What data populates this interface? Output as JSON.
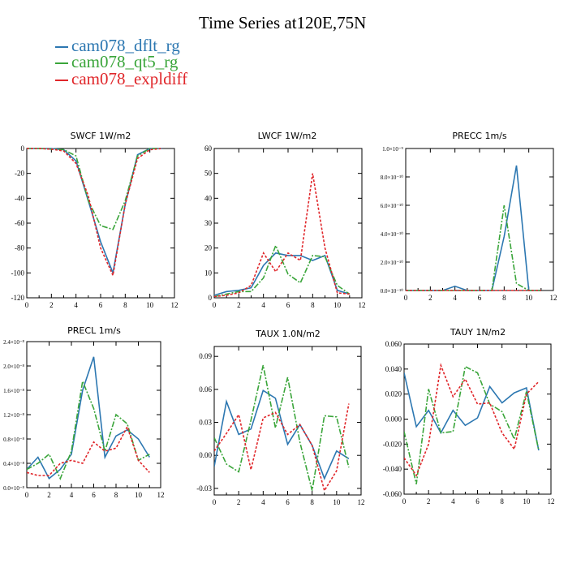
{
  "figure_title": "Time Series at120E,75N",
  "legend": [
    {
      "name": "cam078_dflt_rg",
      "color": "#2c77b1",
      "dash": "solid"
    },
    {
      "name": "cam078_qt5_rg",
      "color": "#3aa53a",
      "dash": "dashdot"
    },
    {
      "name": "cam078_expldiff",
      "color": "#e0262a",
      "dash": "dotted"
    }
  ],
  "chart_data": [
    {
      "type": "line",
      "title": "SWCF   1W/m2",
      "x": [
        0,
        1,
        2,
        3,
        4,
        5,
        6,
        7,
        8,
        9,
        10,
        11
      ],
      "xlim": [
        0,
        12
      ],
      "xticks": [
        "0",
        "2",
        "4",
        "6",
        "8",
        "10",
        "12"
      ],
      "ylim": [
        -120,
        0
      ],
      "yticks": [
        "0",
        "-20",
        "-40",
        "-60",
        "-80",
        "-100",
        "-120"
      ],
      "series": [
        {
          "name": "cam078_dflt_rg",
          "values": [
            0,
            0,
            0,
            -1,
            -10,
            -42,
            -75,
            -100,
            -45,
            -5,
            0,
            0
          ]
        },
        {
          "name": "cam078_qt5_rg",
          "values": [
            0,
            0,
            -0.5,
            -1,
            -6,
            -42,
            -62,
            -65,
            -42,
            -6,
            0,
            0
          ]
        },
        {
          "name": "cam078_expldiff",
          "values": [
            0,
            0,
            -0.5,
            -2,
            -12,
            -38,
            -80,
            -102,
            -45,
            -8,
            -1,
            0
          ]
        }
      ]
    },
    {
      "type": "line",
      "title": "LWCF   1W/m2",
      "x": [
        0,
        1,
        2,
        3,
        4,
        5,
        6,
        7,
        8,
        9,
        10,
        11
      ],
      "xlim": [
        0,
        12
      ],
      "xticks": [
        "0",
        "2",
        "4",
        "6",
        "8",
        "10",
        "12"
      ],
      "ylim": [
        0,
        60
      ],
      "yticks": [
        "0",
        "10",
        "20",
        "30",
        "40",
        "50",
        "60"
      ],
      "series": [
        {
          "name": "cam078_dflt_rg",
          "values": [
            1,
            2.5,
            3,
            4,
            13,
            18,
            17,
            17,
            15,
            17,
            3,
            1.5
          ]
        },
        {
          "name": "cam078_qt5_rg",
          "values": [
            0.5,
            1.5,
            2.5,
            2.5,
            8,
            21,
            9.5,
            6,
            17,
            16.5,
            5,
            1.5
          ]
        },
        {
          "name": "cam078_expldiff",
          "values": [
            0.5,
            1,
            2,
            5,
            18,
            10.5,
            18,
            15,
            50,
            20,
            2,
            1.5
          ]
        }
      ]
    },
    {
      "type": "line",
      "title": "PRECC   1m/s",
      "x": [
        0,
        1,
        2,
        3,
        4,
        5,
        6,
        7,
        8,
        9,
        10,
        11
      ],
      "xlim": [
        0,
        12
      ],
      "xticks": [
        "0",
        "2",
        "4",
        "6",
        "8",
        "10",
        "12"
      ],
      "ylim": [
        0,
        1.0
      ],
      "yticks": [
        "0.0×10⁻¹⁰",
        "2.0×10⁻¹⁰",
        "4.0×10⁻¹⁰",
        "6.0×10⁻¹⁰",
        "8.0×10⁻¹⁰",
        "1.0×10⁻⁹"
      ],
      "ylabel": "×10⁻⁹",
      "series": [
        {
          "name": "cam078_dflt_rg",
          "values": [
            0,
            0,
            0,
            0,
            0.03,
            0,
            0,
            0,
            0.38,
            0.88,
            0,
            0
          ]
        },
        {
          "name": "cam078_qt5_rg",
          "values": [
            0,
            0,
            0,
            0,
            0,
            0,
            0,
            0,
            0.6,
            0.05,
            0,
            0
          ]
        },
        {
          "name": "cam078_expldiff",
          "values": [
            0,
            0,
            0,
            0,
            0,
            0,
            0,
            0,
            0,
            0,
            0,
            0
          ]
        }
      ]
    },
    {
      "type": "line",
      "title": "PRECL   1m/s",
      "x": [
        0,
        1,
        2,
        3,
        4,
        5,
        6,
        7,
        8,
        9,
        10,
        11
      ],
      "xlim": [
        0,
        12
      ],
      "xticks": [
        "0",
        "2",
        "4",
        "6",
        "8",
        "10",
        "12"
      ],
      "ylim": [
        0,
        2.4
      ],
      "yticks": [
        "0.0×10⁻⁸",
        "0.4×10⁻⁸",
        "0.8×10⁻⁸",
        "1.2×10⁻⁸",
        "1.6×10⁻⁸",
        "2.0×10⁻⁸",
        "2.4×10⁻⁸"
      ],
      "ylabel": "×10⁻⁸",
      "series": [
        {
          "name": "cam078_dflt_rg",
          "values": [
            0.3,
            0.5,
            0.15,
            0.3,
            0.55,
            1.6,
            2.15,
            0.5,
            0.85,
            0.95,
            0.8,
            0.5
          ]
        },
        {
          "name": "cam078_qt5_rg",
          "values": [
            0.3,
            0.4,
            0.55,
            0.15,
            0.6,
            1.75,
            1.3,
            0.6,
            1.2,
            1.05,
            0.45,
            0.55
          ]
        },
        {
          "name": "cam078_expldiff",
          "values": [
            0.25,
            0.2,
            0.2,
            0.4,
            0.45,
            0.4,
            0.75,
            0.6,
            0.65,
            1.0,
            0.45,
            0.25
          ]
        }
      ]
    },
    {
      "type": "line",
      "title": "TAUX   1.0N/m2",
      "x": [
        0,
        1,
        2,
        3,
        4,
        5,
        6,
        7,
        8,
        9,
        10,
        11
      ],
      "xlim": [
        0,
        12
      ],
      "xticks": [
        "0",
        "2",
        "4",
        "6",
        "8",
        "10",
        "12"
      ],
      "ylim": [
        -0.036,
        0.099
      ],
      "yticks": [
        "-0.03",
        "0.00",
        "0.03",
        "0.06",
        "0.09"
      ],
      "series": [
        {
          "name": "cam078_dflt_rg",
          "values": [
            -0.01,
            0.049,
            0.019,
            0.024,
            0.059,
            0.052,
            0.01,
            0.028,
            0.009,
            -0.021,
            0.004,
            -0.003
          ]
        },
        {
          "name": "cam078_qt5_rg",
          "values": [
            0.016,
            -0.008,
            -0.015,
            0.032,
            0.082,
            0.025,
            0.071,
            0.012,
            -0.032,
            0.036,
            0.035,
            -0.011
          ]
        },
        {
          "name": "cam078_expldiff",
          "values": [
            0.004,
            0.02,
            0.037,
            -0.013,
            0.034,
            0.039,
            0.019,
            0.028,
            0.009,
            -0.032,
            -0.014,
            0.047
          ]
        }
      ]
    },
    {
      "type": "line",
      "title": "TAUY   1N/m2",
      "x": [
        0,
        1,
        2,
        3,
        4,
        5,
        6,
        7,
        8,
        9,
        10,
        11
      ],
      "xlim": [
        0,
        12
      ],
      "xticks": [
        "0",
        "2",
        "4",
        "6",
        "8",
        "10",
        "12"
      ],
      "ylim": [
        -0.06,
        0.06
      ],
      "yticks": [
        "-0.060",
        "-0.040",
        "-0.020",
        "0.000",
        "0.020",
        "0.040",
        "0.060"
      ],
      "series": [
        {
          "name": "cam078_dflt_rg",
          "values": [
            0.037,
            -0.006,
            0.007,
            -0.011,
            0.007,
            -0.005,
            0.001,
            0.026,
            0.013,
            0.021,
            0.025,
            -0.025
          ]
        },
        {
          "name": "cam078_qt5_rg",
          "values": [
            -0.01,
            -0.052,
            0.024,
            -0.011,
            -0.01,
            0.042,
            0.037,
            0.012,
            0.006,
            -0.016,
            0.022,
            -0.025
          ]
        },
        {
          "name": "cam078_expldiff",
          "values": [
            -0.031,
            -0.045,
            -0.02,
            0.043,
            0.018,
            0.032,
            0.012,
            0.013,
            -0.011,
            -0.024,
            0.02,
            0.03
          ]
        }
      ]
    }
  ]
}
